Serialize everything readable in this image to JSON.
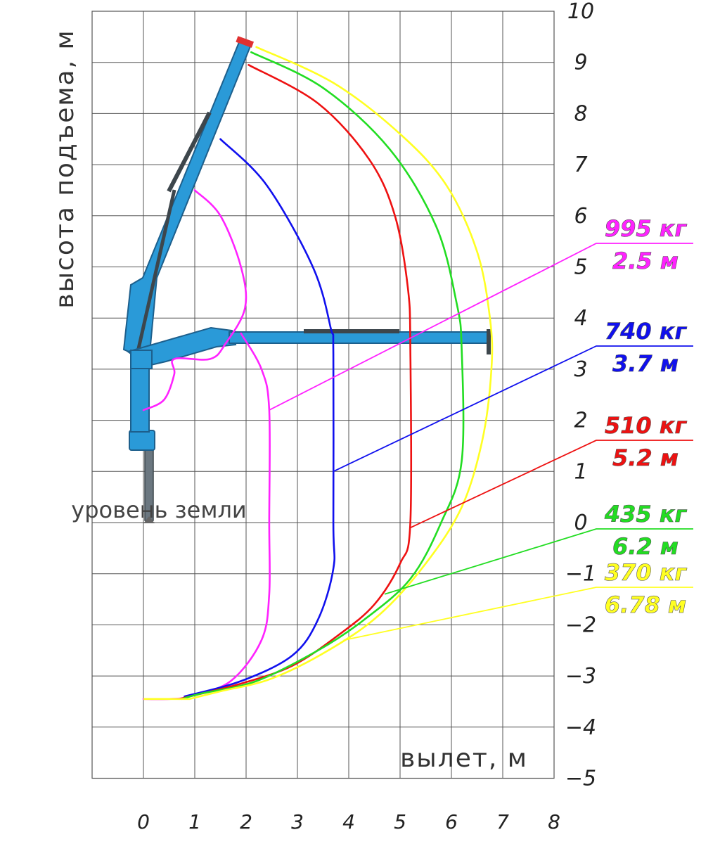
{
  "chart_data": {
    "type": "line",
    "title": "",
    "xlabel": "вылет,  м",
    "ylabel": "высота подъема,  м",
    "xlim": [
      0,
      8
    ],
    "ylim": [
      -5,
      10
    ],
    "x_ticks": [
      "0",
      "1",
      "2",
      "3",
      "4",
      "5",
      "6",
      "7",
      "8"
    ],
    "y_ticks": [
      "10",
      "9",
      "8",
      "7",
      "6",
      "5",
      "4",
      "3",
      "2",
      "1",
      "0",
      "−1",
      "−2",
      "−3",
      "−4",
      "−5"
    ],
    "grid": true,
    "annotations": {
      "ground_level": "уровень земли",
      "ground_level_y": 0
    },
    "series": [
      {
        "color": "#ff22ff",
        "load_label": "995 кг",
        "reach_label": "2.5 м",
        "points": [
          [
            1.0,
            6.5
          ],
          [
            1.5,
            6.0
          ],
          [
            1.9,
            5.0
          ],
          [
            1.98,
            4.2
          ],
          [
            1.6,
            3.5
          ],
          [
            1.3,
            3.2
          ],
          [
            0.6,
            3.2
          ],
          [
            0.6,
            2.9
          ],
          [
            0.4,
            2.4
          ],
          [
            0.0,
            2.2
          ]
        ]
      },
      {
        "color": "#ff22ff",
        "load_label": "",
        "reach_label": "",
        "points": [
          [
            1.9,
            3.7
          ],
          [
            2.3,
            3.0
          ],
          [
            2.45,
            2.2
          ],
          [
            2.45,
            0
          ],
          [
            2.45,
            -1.4
          ],
          [
            2.3,
            -2.3
          ],
          [
            1.7,
            -3.1
          ],
          [
            0.9,
            -3.4
          ],
          [
            0.5,
            -3.45
          ],
          [
            0.0,
            -3.45
          ]
        ]
      },
      {
        "color": "#1010ee",
        "load_label": "740 кг",
        "reach_label": "3.7 м",
        "points": [
          [
            1.5,
            7.5
          ],
          [
            2.4,
            6.6
          ],
          [
            3.3,
            5.0
          ],
          [
            3.65,
            3.8
          ],
          [
            3.7,
            3.3
          ],
          [
            3.7,
            0
          ],
          [
            3.7,
            -0.9
          ],
          [
            3.4,
            -1.9
          ],
          [
            2.9,
            -2.6
          ],
          [
            1.9,
            -3.1
          ],
          [
            0.8,
            -3.4
          ]
        ]
      },
      {
        "color": "#ee1111",
        "load_label": "510 кг",
        "reach_label": "5.2 м",
        "points": [
          [
            2.05,
            8.95
          ],
          [
            3.4,
            8.2
          ],
          [
            4.4,
            7.1
          ],
          [
            4.9,
            6.0
          ],
          [
            5.15,
            4.6
          ],
          [
            5.2,
            3.4
          ],
          [
            5.2,
            0
          ],
          [
            5.0,
            -0.8
          ],
          [
            4.5,
            -1.6
          ],
          [
            3.8,
            -2.2
          ],
          [
            2.9,
            -2.8
          ],
          [
            1.9,
            -3.15
          ],
          [
            0.9,
            -3.4
          ],
          [
            0.7,
            -3.45
          ]
        ]
      },
      {
        "color": "#22dd22",
        "load_label": "435 кг",
        "reach_label": "6.2 м",
        "points": [
          [
            2.1,
            9.2
          ],
          [
            3.5,
            8.5
          ],
          [
            4.8,
            7.3
          ],
          [
            5.7,
            5.8
          ],
          [
            6.1,
            4.3
          ],
          [
            6.2,
            3.4
          ],
          [
            6.2,
            1.2
          ],
          [
            5.8,
            0
          ],
          [
            5.2,
            -1.1
          ],
          [
            4.3,
            -1.9
          ],
          [
            3.4,
            -2.5
          ],
          [
            2.2,
            -3.1
          ],
          [
            1.1,
            -3.35
          ],
          [
            0.75,
            -3.45
          ]
        ]
      },
      {
        "color": "#ffff22",
        "load_label": "370 кг",
        "reach_label": "6.78 м",
        "points": [
          [
            2.2,
            9.3
          ],
          [
            3.7,
            8.6
          ],
          [
            5.0,
            7.6
          ],
          [
            5.9,
            6.6
          ],
          [
            6.5,
            5.3
          ],
          [
            6.75,
            4.0
          ],
          [
            6.78,
            3.0
          ],
          [
            6.6,
            1.6
          ],
          [
            6.2,
            0.3
          ],
          [
            5.5,
            -0.8
          ],
          [
            4.6,
            -1.8
          ],
          [
            3.6,
            -2.5
          ],
          [
            2.5,
            -3.05
          ],
          [
            1.5,
            -3.3
          ],
          [
            0.9,
            -3.45
          ]
        ]
      }
    ],
    "leaders": [
      {
        "color": "#ff22ff",
        "from": [
          2.45,
          2.2
        ]
      },
      {
        "color": "#1010ee",
        "from": [
          3.7,
          1.0
        ]
      },
      {
        "color": "#ee1111",
        "from": [
          5.2,
          -0.1
        ]
      },
      {
        "color": "#22dd22",
        "from": [
          4.7,
          -1.4
        ]
      },
      {
        "color": "#ffff22",
        "from": [
          3.9,
          -2.3
        ]
      }
    ],
    "label_colors": [
      "#ff22ff",
      "#1010ee",
      "#ee1111",
      "#22dd22",
      "#ffff22"
    ]
  },
  "crane": {
    "body_color": "#2a9ad8",
    "outline_color": "#1d5f8c",
    "tip_color": "#e03030"
  }
}
